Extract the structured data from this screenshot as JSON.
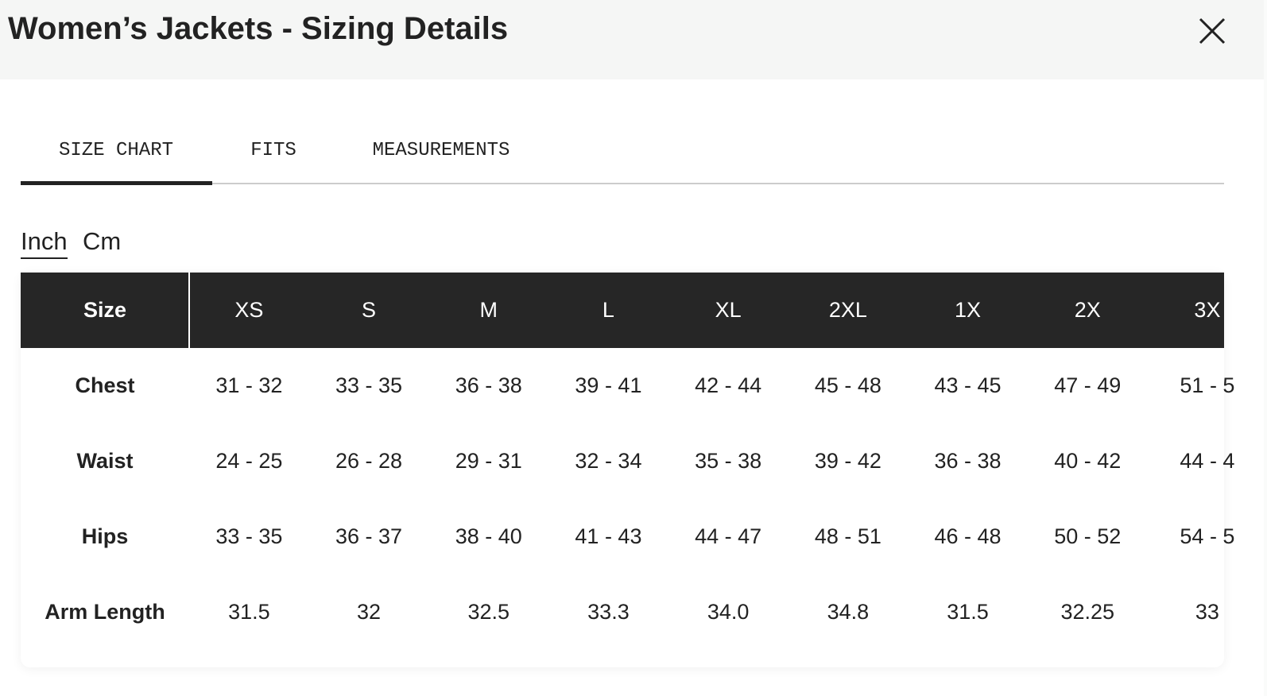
{
  "header": {
    "title": "Women’s Jackets - Sizing Details"
  },
  "tabs": [
    "SIZE CHART",
    "FITS",
    "MEASUREMENTS"
  ],
  "units": [
    "Inch",
    "Cm"
  ],
  "table": {
    "header": [
      "Size",
      "XS",
      "S",
      "M",
      "L",
      "XL",
      "2XL",
      "1X",
      "2X",
      "3X"
    ],
    "rows": [
      [
        "Chest",
        "31 - 32",
        "33 - 35",
        "36 - 38",
        "39 - 41",
        "42 - 44",
        "45 - 48",
        "43 - 45",
        "47 - 49",
        "51 - 5"
      ],
      [
        "Waist",
        "24 - 25",
        "26 - 28",
        "29 - 31",
        "32 - 34",
        "35 - 38",
        "39 - 42",
        "36 - 38",
        "40 - 42",
        "44 - 4"
      ],
      [
        "Hips",
        "33 - 35",
        "36 - 37",
        "38 - 40",
        "41 - 43",
        "44 - 47",
        "48 - 51",
        "46 - 48",
        "50 - 52",
        "54 - 5"
      ],
      [
        "Arm Length",
        "31.5",
        "32",
        "32.5",
        "33.3",
        "34.0",
        "34.8",
        "31.5",
        "32.25",
        "33"
      ]
    ]
  }
}
